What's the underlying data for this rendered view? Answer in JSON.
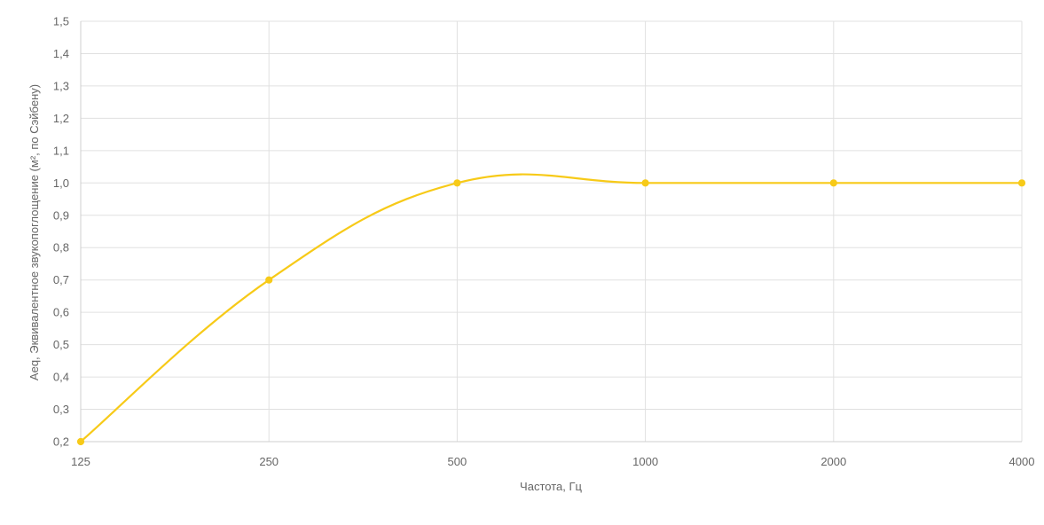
{
  "chart_data": {
    "type": "line",
    "categories": [
      "125",
      "250",
      "500",
      "1000",
      "2000",
      "4000"
    ],
    "series": [
      {
        "values": [
          0.2,
          0.7,
          1.0,
          1.0,
          1.0,
          1.0
        ],
        "color": "#f7ca18"
      }
    ],
    "xlabel": "Частота, Гц",
    "ylabel": "Aeq, Эквивалентное звукопоглощение (м², по Сэйбену)",
    "ylim": [
      0.2,
      1.5
    ],
    "yticks": [
      "0,2",
      "0,3",
      "0,4",
      "0,5",
      "0,6",
      "0,7",
      "0,8",
      "0,9",
      "1,0",
      "1,1",
      "1,2",
      "1,3",
      "1,4",
      "1,5"
    ],
    "grid": true,
    "smooth": true,
    "legend": "none"
  }
}
